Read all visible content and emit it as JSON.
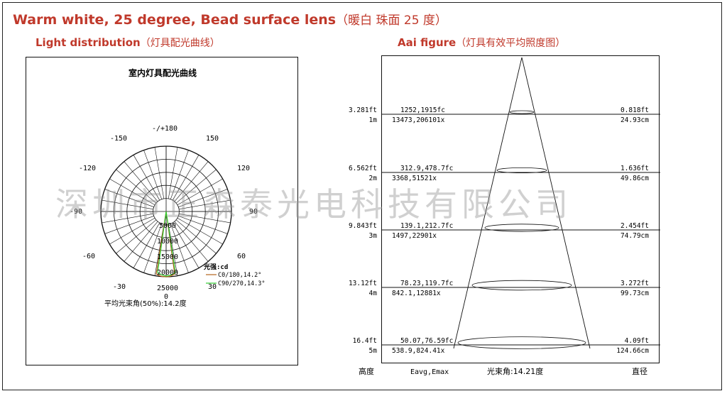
{
  "title": {
    "en": "Warm white, 25 degree, Bead surface lens",
    "cn": "（暖白  珠面 25 度）"
  },
  "left_panel": {
    "heading_en": "Light distribution",
    "heading_cn": "（灯具配光曲线）",
    "chart_title": "室内灯具配光曲线",
    "angle_labels": {
      "top": "-/+180",
      "m150": "-150",
      "p150": "150",
      "m120": "-120",
      "p120": "120",
      "m90": "-90",
      "p90": "90",
      "m60": "-60",
      "p60": "60",
      "m30": "-30",
      "p30": "30",
      "zero": "0"
    },
    "radial_labels": [
      "5000",
      "10000",
      "15000",
      "20000",
      "25000"
    ],
    "legend_title": "光强:cd",
    "legend_c0": "C0/180,14.2°",
    "legend_c90": "C90/270,14.3°",
    "beam_angle_text": "平均光束角(50%):14.2度",
    "colors": {
      "c0": "#b5651d",
      "c90": "#32cd32"
    }
  },
  "right_panel": {
    "heading_en": "Aai figure",
    "heading_cn": "（灯具有效平均照度图）",
    "rows": [
      {
        "height_ft": "3.281ft",
        "height_m": "1m",
        "fc": "1252,1915fc",
        "lx": "13473,206101x",
        "dia_ft": "0.818ft",
        "dia_cm": "24.93cm"
      },
      {
        "height_ft": "6.562ft",
        "height_m": "2m",
        "fc": "312.9,478.7fc",
        "lx": "3368,51521x",
        "dia_ft": "1.636ft",
        "dia_cm": "49.86cm"
      },
      {
        "height_ft": "9.843ft",
        "height_m": "3m",
        "fc": "139.1,212.7fc",
        "lx": "1497,22901x",
        "dia_ft": "2.454ft",
        "dia_cm": "74.79cm"
      },
      {
        "height_ft": "13.12ft",
        "height_m": "4m",
        "fc": "78.23,119.7fc",
        "lx": "842.1,12881x",
        "dia_ft": "3.272ft",
        "dia_cm": "99.73cm"
      },
      {
        "height_ft": "16.4ft",
        "height_m": "5m",
        "fc": "50.07,76.59fc",
        "lx": "538.9,824.41x",
        "dia_ft": "4.09ft",
        "dia_cm": "124.66cm"
      }
    ],
    "footer": {
      "height": "高度",
      "avg_max": "Eavg,Emax",
      "beam": "光束角:14.21度",
      "diameter": "直径"
    }
  },
  "watermark": "深圳市正森泰光电科技有限公司"
}
